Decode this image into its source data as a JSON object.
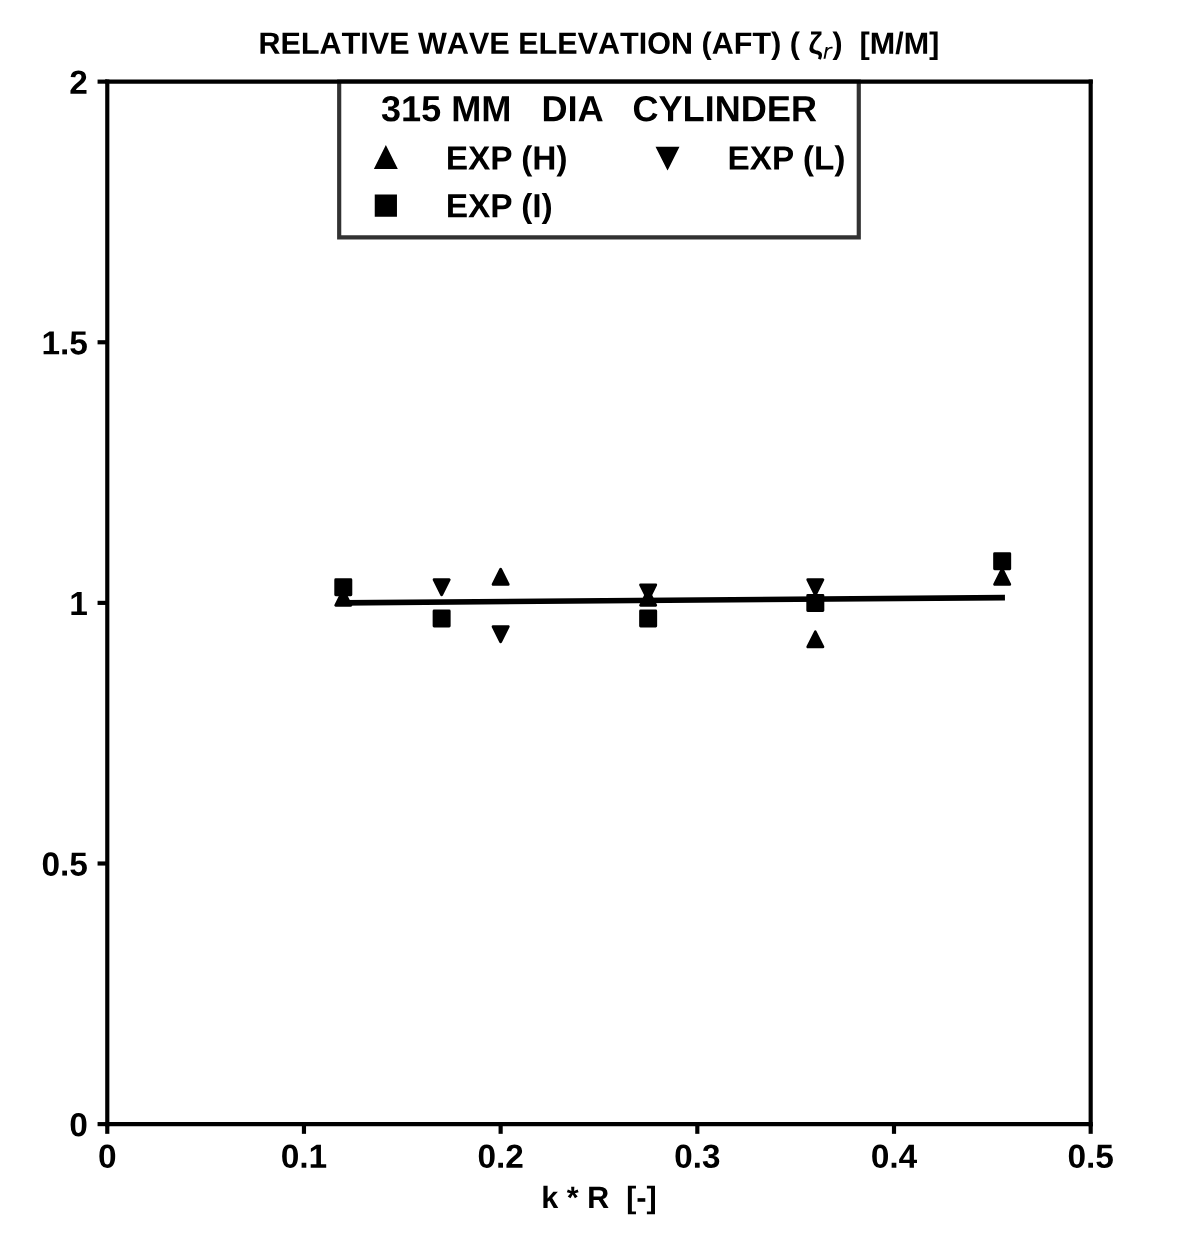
{
  "chart_data": {
    "type": "scatter",
    "title": "RELATIVE WAVE ELEVATION (AFT) ( ζ$_{r}$)  [M/M]",
    "xlabel": "k * R  [-]",
    "legend_title": "315 MM   DIA   CYLINDER",
    "x": [
      0.12,
      0.17,
      0.2,
      0.275,
      0.36,
      0.455
    ],
    "series": [
      {
        "type": "line",
        "color": "#000000",
        "marker": "none",
        "x": [
          0.12,
          0.455
        ],
        "values": [
          1.0,
          1.01
        ]
      },
      {
        "name": "EXP (H)",
        "color": "#000000",
        "marker": "triangle",
        "values": [
          1.01,
          null,
          1.05,
          1.01,
          0.93,
          1.05
        ]
      },
      {
        "name": "EXP (I)",
        "color": "#000000",
        "marker": "square",
        "values": [
          1.03,
          0.97,
          null,
          0.97,
          1.0,
          1.08
        ]
      },
      {
        "name": "EXP (L)",
        "color": "#000000",
        "marker": "triangle_down",
        "values": [
          null,
          1.03,
          0.94,
          1.02,
          1.03,
          null
        ]
      }
    ],
    "xlim": [
      0,
      0.5
    ],
    "xticks": [
      0,
      0.1,
      0.2,
      0.3,
      0.4,
      0.5
    ],
    "ylim": [
      0,
      2
    ],
    "yticks": [
      0,
      0.5,
      1,
      1.5,
      2
    ],
    "grid": false,
    "legend": "top"
  }
}
